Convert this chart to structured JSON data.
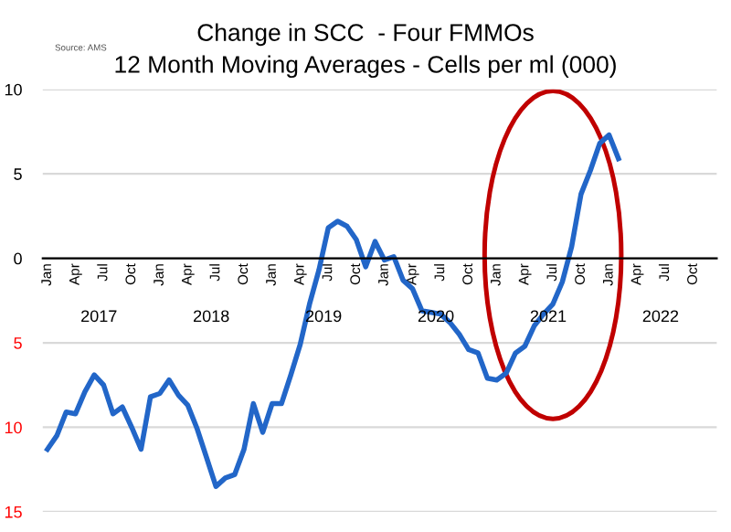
{
  "chart_data": {
    "type": "line",
    "title": "Change in SCC  - Four FMMOs",
    "subtitle": "12 Month Moving Averages - Cells per ml (000)",
    "annotations": [
      "Source: AMS",
      "2017",
      "2018",
      "2019",
      "2020",
      "2021",
      "2022"
    ],
    "categories": [
      "Jan",
      null,
      null,
      "Apr",
      null,
      null,
      "Jul",
      null,
      null,
      "Oct",
      null,
      null,
      "Jan",
      null,
      null,
      "Apr",
      null,
      null,
      "Jul",
      null,
      null,
      "Oct",
      null,
      null,
      "Jan",
      null,
      null,
      "Apr",
      null,
      null,
      "Jul",
      null,
      null,
      "Oct",
      null,
      null,
      "Jan",
      null,
      null,
      "Apr",
      null,
      null,
      "Jul",
      null,
      null,
      "Oct",
      null,
      null,
      "Jan",
      null,
      null,
      "Apr",
      null,
      null,
      "Jul",
      null,
      null,
      "Oct",
      null,
      null,
      "Jan",
      null,
      null,
      "Apr",
      null,
      null,
      "Jul",
      null,
      null,
      "Oct",
      null,
      null
    ],
    "series": [
      {
        "color": "#2266c8",
        "values": [
          -11.3,
          -10.5,
          -9.1,
          -9.2,
          -7.9,
          -6.9,
          -7.5,
          -9.2,
          -8.8,
          -10.0,
          -11.3,
          -8.2,
          -8.0,
          -7.2,
          -8.1,
          -8.7,
          -10.1,
          -11.8,
          -13.5,
          -13.0,
          -12.8,
          -11.3,
          -8.6,
          -10.3,
          -8.6,
          -8.6,
          -6.9,
          -5.1,
          -2.7,
          -0.7,
          1.8,
          2.2,
          1.9,
          1.1,
          -0.5,
          1.0,
          -0.1,
          0.1,
          -1.3,
          -1.8,
          -3.1,
          -3.2,
          -3.3,
          -3.8,
          -4.5,
          -5.4,
          -5.6,
          -7.1,
          -7.2,
          -6.8,
          -5.6,
          -5.2,
          -4.0,
          -3.3,
          -2.7,
          -1.4,
          0.7,
          3.8,
          5.2,
          6.8,
          7.3,
          5.9,
          null,
          null,
          null,
          null,
          null,
          null,
          null,
          null,
          null,
          null
        ]
      }
    ],
    "ylim": [
      -15,
      10
    ],
    "yticks": [
      10,
      5,
      0,
      {
        "value": -5,
        "label": "5"
      },
      {
        "value": -10,
        "label": "10"
      },
      {
        "value": -15,
        "label": "15"
      }
    ],
    "grid": "y",
    "legend": false,
    "marker": "none",
    "line_style": "solid"
  }
}
